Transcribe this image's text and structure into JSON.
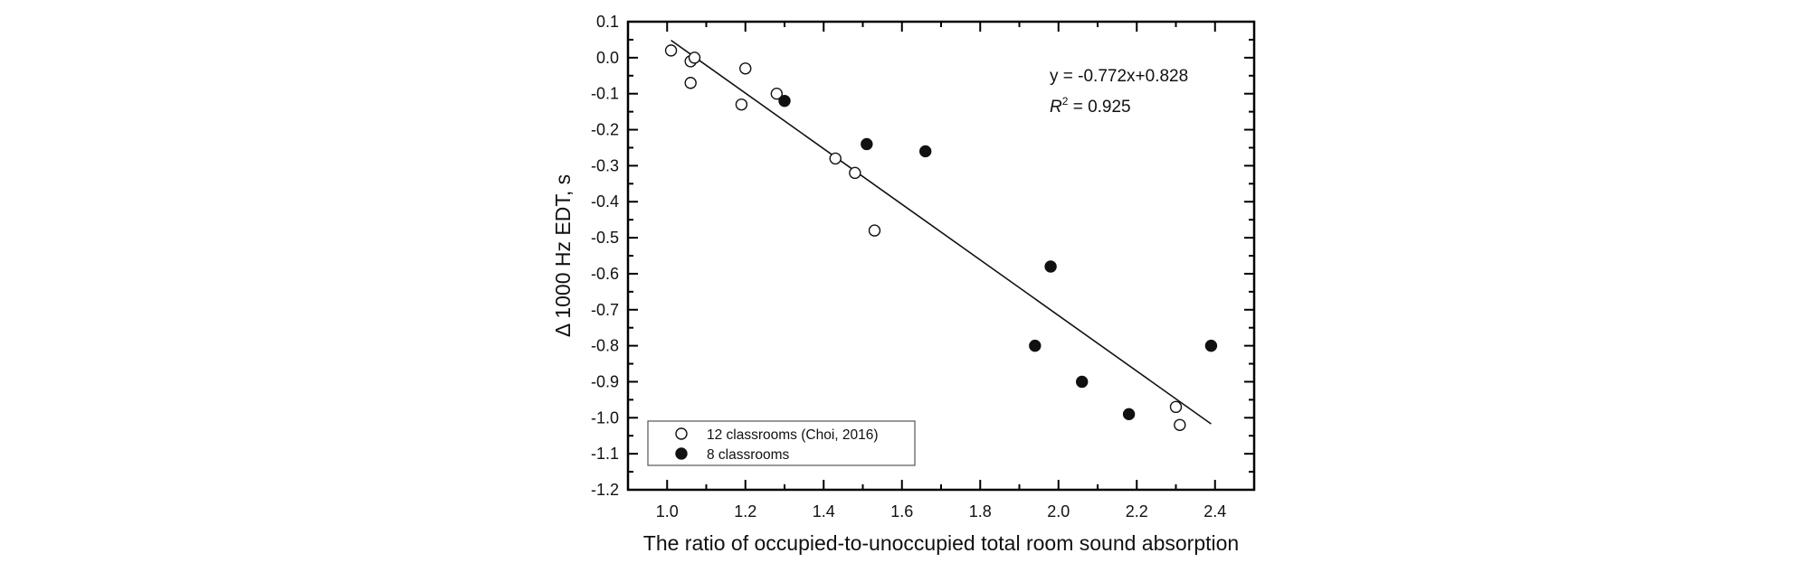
{
  "chart_data": {
    "type": "scatter",
    "title": "",
    "xlabel": "The ratio of occupied-to-unoccupied total room sound absorption",
    "ylabel": "Δ 1000 Hz EDT, s",
    "xlim": [
      0.9,
      2.5
    ],
    "ylim": [
      -1.2,
      0.1
    ],
    "xticks": [
      1.0,
      1.2,
      1.4,
      1.6,
      1.8,
      2.0,
      2.2,
      2.4
    ],
    "xtick_labels": [
      "1.0",
      "1.2",
      "1.4",
      "1.6",
      "1.8",
      "2.0",
      "2.2",
      "2.4"
    ],
    "yticks": [
      0.1,
      0.0,
      -0.1,
      -0.2,
      -0.3,
      -0.4,
      -0.5,
      -0.6,
      -0.7,
      -0.8,
      -0.9,
      -1.0,
      -1.1,
      -1.2
    ],
    "ytick_labels": [
      "0.1",
      "0.0",
      "-0.1",
      "-0.2",
      "-0.3",
      "-0.4",
      "-0.5",
      "-0.6",
      "-0.7",
      "-0.8",
      "-0.9",
      "-1.0",
      "-1.1",
      "-1.2"
    ],
    "grid": false,
    "legend_position": "bottom-left",
    "series": [
      {
        "name": "12 classrooms (Choi, 2016)",
        "marker": "open-circle",
        "points": [
          {
            "x": 1.01,
            "y": 0.02
          },
          {
            "x": 1.06,
            "y": -0.01
          },
          {
            "x": 1.07,
            "y": 0.0
          },
          {
            "x": 1.06,
            "y": -0.07
          },
          {
            "x": 1.19,
            "y": -0.13
          },
          {
            "x": 1.2,
            "y": -0.03
          },
          {
            "x": 1.28,
            "y": -0.1
          },
          {
            "x": 1.43,
            "y": -0.28
          },
          {
            "x": 1.48,
            "y": -0.32
          },
          {
            "x": 1.53,
            "y": -0.48
          },
          {
            "x": 2.3,
            "y": -0.97
          },
          {
            "x": 2.31,
            "y": -1.02
          }
        ]
      },
      {
        "name": "8 classrooms",
        "marker": "filled-circle",
        "points": [
          {
            "x": 1.3,
            "y": -0.12
          },
          {
            "x": 1.51,
            "y": -0.24
          },
          {
            "x": 1.66,
            "y": -0.26
          },
          {
            "x": 1.94,
            "y": -0.8
          },
          {
            "x": 1.98,
            "y": -0.58
          },
          {
            "x": 2.06,
            "y": -0.9
          },
          {
            "x": 2.18,
            "y": -0.99
          },
          {
            "x": 2.39,
            "y": -0.8
          }
        ]
      }
    ],
    "fit_line": {
      "slope": -0.772,
      "intercept": 0.828,
      "x_range": [
        1.01,
        2.39
      ]
    },
    "annotations": {
      "equation": "y = -0.772x+0.828",
      "r2_symbol": "R",
      "r2_superscript": "2",
      "r2_value": " = 0.925"
    }
  }
}
